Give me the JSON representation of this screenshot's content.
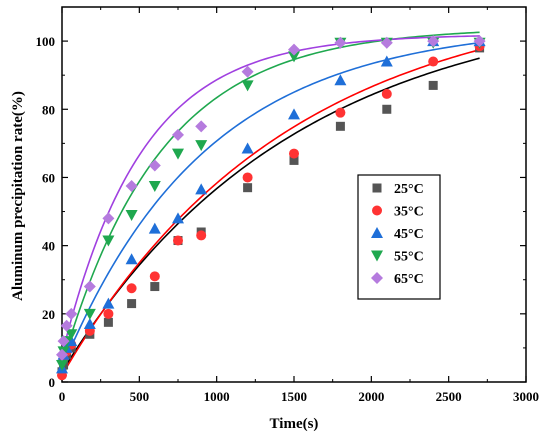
{
  "chart_data": {
    "type": "scatter",
    "xlabel": "Time(s)",
    "ylabel": "Aluminum precipitation rate(%)",
    "xlim": [
      0,
      3000
    ],
    "ylim": [
      0,
      110
    ],
    "xticks": [
      0,
      500,
      1000,
      1500,
      2000,
      2500,
      3000
    ],
    "yticks": [
      0,
      20,
      40,
      60,
      80,
      100
    ],
    "grid": false,
    "legend_position": "center-right",
    "series": [
      {
        "name": "25°C",
        "marker": "square",
        "color": "#555555",
        "line_color": "#000000",
        "x": [
          0,
          10,
          30,
          60,
          180,
          300,
          450,
          600,
          750,
          900,
          1200,
          1500,
          1800,
          2100,
          2400,
          2700
        ],
        "y": [
          3,
          5,
          8,
          10,
          14,
          17.5,
          23,
          28,
          41.5,
          44,
          57,
          65,
          75,
          80,
          87,
          98
        ],
        "fit_A": 113,
        "fit_k": 0.00067
      },
      {
        "name": "35°C",
        "marker": "circle",
        "color": "#ff3333",
        "line_color": "#ff0000",
        "x": [
          0,
          10,
          30,
          60,
          180,
          300,
          450,
          600,
          750,
          900,
          1200,
          1500,
          1800,
          2100,
          2400,
          2700
        ],
        "y": [
          2,
          7,
          9,
          11,
          15,
          20,
          27.5,
          31,
          41.5,
          43,
          60,
          67,
          79,
          84.5,
          94,
          98.5
        ],
        "fit_A": 115,
        "fit_k": 0.00069
      },
      {
        "name": "45°C",
        "marker": "triangle-up",
        "color": "#1f6fd8",
        "line_color": "#1f6fd8",
        "x": [
          0,
          10,
          30,
          60,
          180,
          300,
          450,
          600,
          750,
          900,
          1200,
          1500,
          1800,
          2100,
          2400,
          2700
        ],
        "y": [
          4,
          8,
          10,
          12,
          17,
          23,
          36,
          45,
          48,
          56.5,
          68.5,
          78.5,
          88.5,
          94,
          100,
          100
        ],
        "fit_A": 105,
        "fit_k": 0.00108
      },
      {
        "name": "55°C",
        "marker": "triangle-down",
        "color": "#1fa84f",
        "line_color": "#1fa84f",
        "x": [
          0,
          10,
          30,
          60,
          180,
          300,
          450,
          600,
          750,
          900,
          1200,
          1500,
          1800,
          2100,
          2400,
          2700
        ],
        "y": [
          5,
          9,
          12,
          14,
          20,
          41.5,
          49,
          57.5,
          67,
          69.5,
          87,
          95.5,
          99.5,
          99.5,
          99.5,
          99.5
        ],
        "fit_A": 104,
        "fit_k": 0.00157
      },
      {
        "name": "65°C",
        "marker": "diamond",
        "color": "#b57bde",
        "line_color": "#a040e0",
        "x": [
          0,
          10,
          30,
          60,
          180,
          300,
          450,
          600,
          750,
          900,
          1200,
          1500,
          1800,
          2100,
          2400,
          2700
        ],
        "y": [
          8,
          12,
          16.5,
          20,
          28,
          48,
          57.5,
          63.5,
          72.5,
          75,
          91,
          97.5,
          99.5,
          99.5,
          100,
          100
        ],
        "fit_A": 102,
        "fit_k": 0.00195
      }
    ]
  }
}
